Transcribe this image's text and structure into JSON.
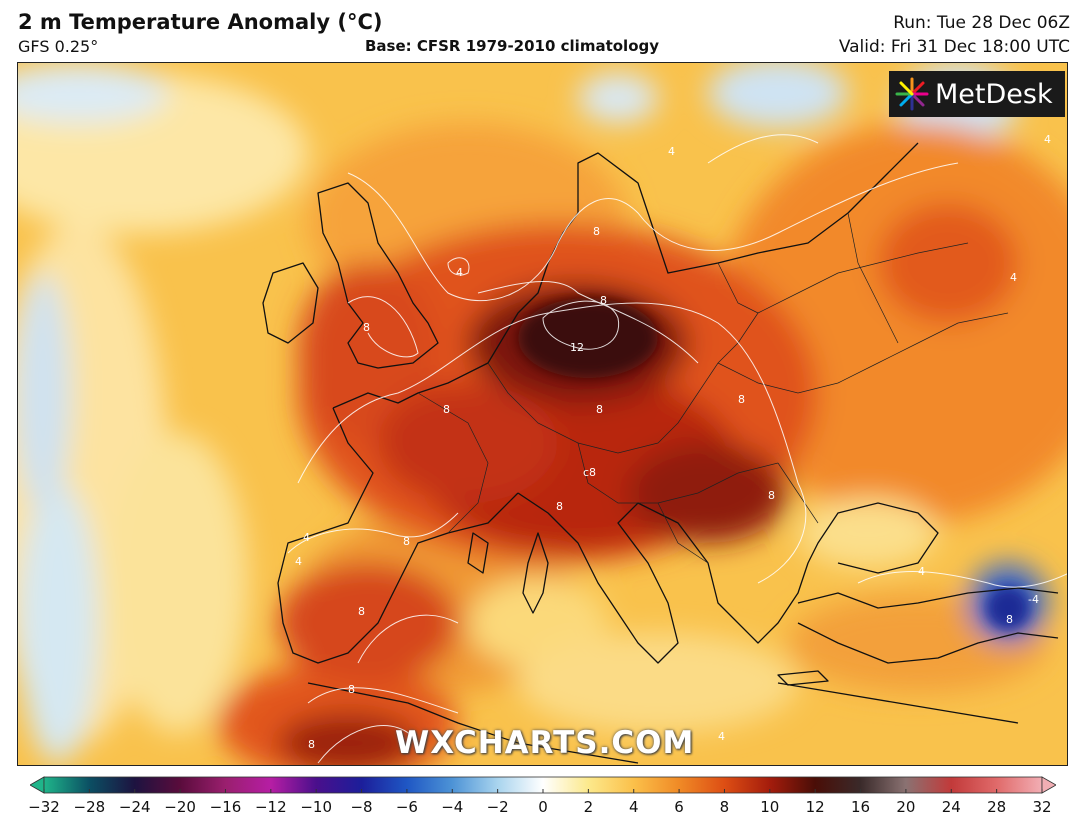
{
  "header": {
    "title": "2 m Temperature Anomaly (°C)",
    "model": "GFS 0.25°",
    "base": "Base: CFSR 1979-2010 climatology",
    "run": "Run: Tue 28 Dec 06Z",
    "valid": "Valid: Fri 31 Dec 18:00 UTC"
  },
  "branding": {
    "logo_text": "MetDesk",
    "watermark": "WXCHARTS.COM"
  },
  "map": {
    "contour_labels": [
      "4",
      "4",
      "4",
      "4",
      "4",
      "4",
      "4",
      "4",
      "8",
      "8",
      "8",
      "8",
      "8",
      "8",
      "8",
      "8",
      "8",
      "8",
      "8",
      "8",
      "12",
      "c8",
      "-4",
      "8"
    ]
  },
  "colorbar": {
    "tick_labels": [
      "−32",
      "−28",
      "−24",
      "−20",
      "−16",
      "−12",
      "−10",
      "−8",
      "−6",
      "−4",
      "−2",
      "0",
      "2",
      "4",
      "6",
      "8",
      "10",
      "12",
      "16",
      "20",
      "24",
      "28",
      "32"
    ],
    "colors": [
      "#1fb58a",
      "#0b4f63",
      "#1d1340",
      "#5a0c3c",
      "#9a1f6e",
      "#b61ea4",
      "#4a0f8c",
      "#1c1e9a",
      "#1f57c4",
      "#4d93d6",
      "#a9d4ee",
      "#ffffff",
      "#fce98c",
      "#fbc04a",
      "#f08a26",
      "#dd4e14",
      "#a41c0c",
      "#4a0e07",
      "#3a2a2a",
      "#8a7272",
      "#c23a3a",
      "#e06a6a",
      "#f2aeb4"
    ]
  }
}
